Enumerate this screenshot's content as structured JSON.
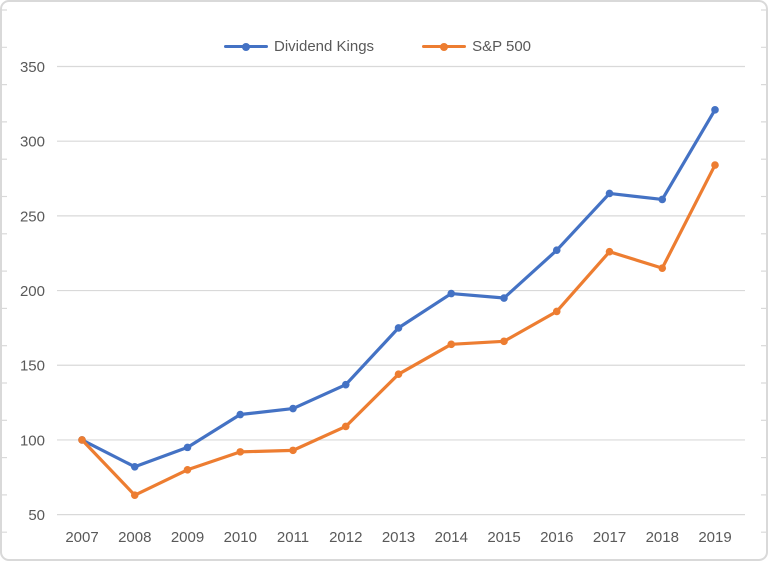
{
  "chart_data": {
    "type": "line",
    "title": "",
    "xlabel": "",
    "ylabel": "",
    "categories": [
      "2007",
      "2008",
      "2009",
      "2010",
      "2011",
      "2012",
      "2013",
      "2014",
      "2015",
      "2016",
      "2017",
      "2018",
      "2019"
    ],
    "series": [
      {
        "name": "Dividend Kings",
        "color": "#4472C4",
        "values": [
          100,
          82,
          95,
          117,
          121,
          137,
          175,
          198,
          195,
          227,
          265,
          261,
          321
        ]
      },
      {
        "name": "S&P 500",
        "color": "#ED7D31",
        "values": [
          100,
          63,
          80,
          92,
          93,
          109,
          144,
          164,
          166,
          186,
          226,
          215,
          284
        ]
      }
    ],
    "ylim": [
      50,
      350
    ],
    "yticks": [
      50,
      100,
      150,
      200,
      250,
      300,
      350
    ],
    "grid": "horizontal",
    "legend_position": "top-center"
  },
  "colors": {
    "background": "#FFFFFF",
    "gridline": "#D9D9D9",
    "frame_border": "#D9D9D9",
    "edge_tick": "#D9D9D9",
    "axis_label": "#595959",
    "legend_text": "#595959"
  }
}
